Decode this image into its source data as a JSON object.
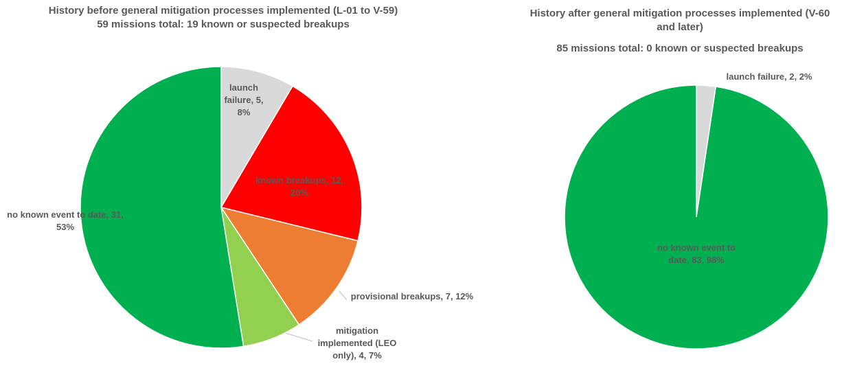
{
  "chart_data": [
    {
      "type": "pie",
      "title": "History before general mitigation processes implemented  (L-01 to V-59)",
      "subtitle": "59 missions total:  19 known or suspected breakups",
      "values": [
        5,
        12,
        7,
        4,
        31
      ],
      "value_labels": [
        "launch failure, 5, 8%",
        "known breakups, 12, 20%",
        "provisional  breakups, 7, 12%",
        "mitigation implemented (LEO only), 4, 7%",
        "no known event to date, 31, 53%"
      ],
      "colors": [
        "#d9d9d9",
        "#ff0000",
        "#ed7d31",
        "#92d050",
        "#00b050"
      ]
    },
    {
      "type": "pie",
      "title": "History after general mitigation processes implemented (V-60 and later)",
      "subtitle": "85 missions total:  0 known or suspected breakups",
      "values": [
        2,
        83
      ],
      "value_labels": [
        "launch failure, 2, 2%",
        "no known event to date, 83, 98%"
      ],
      "colors": [
        "#d9d9d9",
        "#00b050"
      ]
    }
  ]
}
